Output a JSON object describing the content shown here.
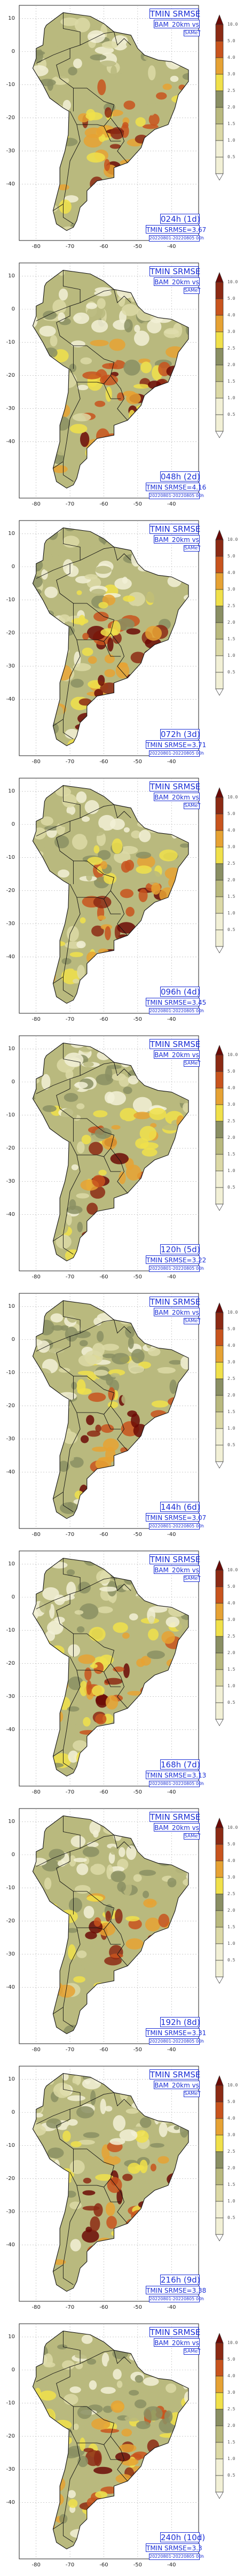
{
  "title": "TMIN SRMSE",
  "model_label": "BAM_20km vs",
  "reference_label": "SAMeT",
  "date_range": "20220801-20220805 00h",
  "panels": [
    {
      "lead": "024h (1d)",
      "rmse": "TMIN SRMSE=3.67"
    },
    {
      "lead": "048h (2d)",
      "rmse": "TMIN SRMSE=4.16"
    },
    {
      "lead": "072h (3d)",
      "rmse": "TMIN SRMSE=3.71"
    },
    {
      "lead": "096h (4d)",
      "rmse": "TMIN SRMSE=3.45"
    },
    {
      "lead": "120h (5d)",
      "rmse": "TMIN SRMSE=3.22"
    },
    {
      "lead": "144h (6d)",
      "rmse": "TMIN SRMSE=3.07"
    },
    {
      "lead": "168h (7d)",
      "rmse": "TMIN SRMSE=3.13"
    },
    {
      "lead": "192h (8d)",
      "rmse": "TMIN SRMSE=3.31"
    },
    {
      "lead": "216h (9d)",
      "rmse": "TMIN SRMSE=3.38"
    },
    {
      "lead": "240h (10d)",
      "rmse": "TMIN SRMSE=3.3"
    }
  ],
  "colorbar": {
    "levels": [
      "10.0",
      "5.0",
      "4.0",
      "3.0",
      "2.5",
      "2.0",
      "1.5",
      "1.0",
      "0.5"
    ],
    "colors": [
      "#ffffff",
      "#f2f0d6",
      "#dcd9a6",
      "#b9b97e",
      "#8a8f63",
      "#f0e04a",
      "#e6a233",
      "#c8541d",
      "#8c2a14",
      "#6b0a06"
    ]
  },
  "y_ticks": [
    "10",
    "0",
    "-10",
    "-20",
    "-30",
    "-40"
  ],
  "x_ticks": [
    "-80",
    "-70",
    "-60",
    "-50",
    "-40"
  ]
}
